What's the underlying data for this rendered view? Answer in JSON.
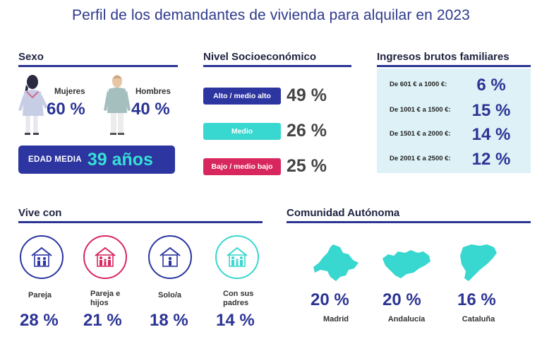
{
  "title": "Perfil de los demandantes de vivienda para alquilar en 2023",
  "colors": {
    "navy": "#2b3494",
    "cyan": "#38e0d4",
    "magenta": "#d8275f",
    "light_blue_panel": "#ddf1f7"
  },
  "sexo": {
    "title": "Sexo",
    "mujeres": {
      "label": "Mujeres",
      "value": "60 %"
    },
    "hombres": {
      "label": "Hombres",
      "value": "40 %"
    },
    "edad_label": "EDAD MEDIA",
    "edad_value": "39 años"
  },
  "nivel": {
    "title": "Nivel Socioeconómico",
    "items": [
      {
        "label": "Alto / medio alto",
        "value": "49 %",
        "color": "#2c35a0"
      },
      {
        "label": "Medio",
        "value": "26 %",
        "color": "#38d7cf"
      },
      {
        "label": "Bajo / medio bajo",
        "value": "25 %",
        "color": "#d8275f"
      }
    ]
  },
  "ingresos": {
    "title": "Ingresos brutos familiares",
    "items": [
      {
        "label": "De 601 € a 1000 €:",
        "value": "6 %"
      },
      {
        "label": "De 1001 € a 1500 €:",
        "value": "15 %"
      },
      {
        "label": "De 1501 € a 2000 €:",
        "value": "14 %"
      },
      {
        "label": "De 2001 € a 2500 €:",
        "value": "12 %"
      }
    ]
  },
  "vive_con": {
    "title": "Vive con",
    "items": [
      {
        "label": "Pareja",
        "value": "28 %",
        "icon": "house-couple-icon",
        "color": "#2c35a0"
      },
      {
        "label": "Pareja e hijos",
        "value": "21 %",
        "icon": "house-family-icon",
        "color": "#d8275f"
      },
      {
        "label": "Solo/a",
        "value": "18 %",
        "icon": "house-single-icon",
        "color": "#2c35a0"
      },
      {
        "label": "Con sus padres",
        "value": "14 %",
        "icon": "house-parents-icon",
        "color": "#38d7cf"
      }
    ]
  },
  "comunidad": {
    "title": "Comunidad Autónoma",
    "items": [
      {
        "label": "Madrid",
        "value": "20 %",
        "icon": "madrid-map-icon"
      },
      {
        "label": "Andalucía",
        "value": "20 %",
        "icon": "andalucia-map-icon"
      },
      {
        "label": "Cataluña",
        "value": "16 %",
        "icon": "cataluna-map-icon"
      }
    ]
  }
}
